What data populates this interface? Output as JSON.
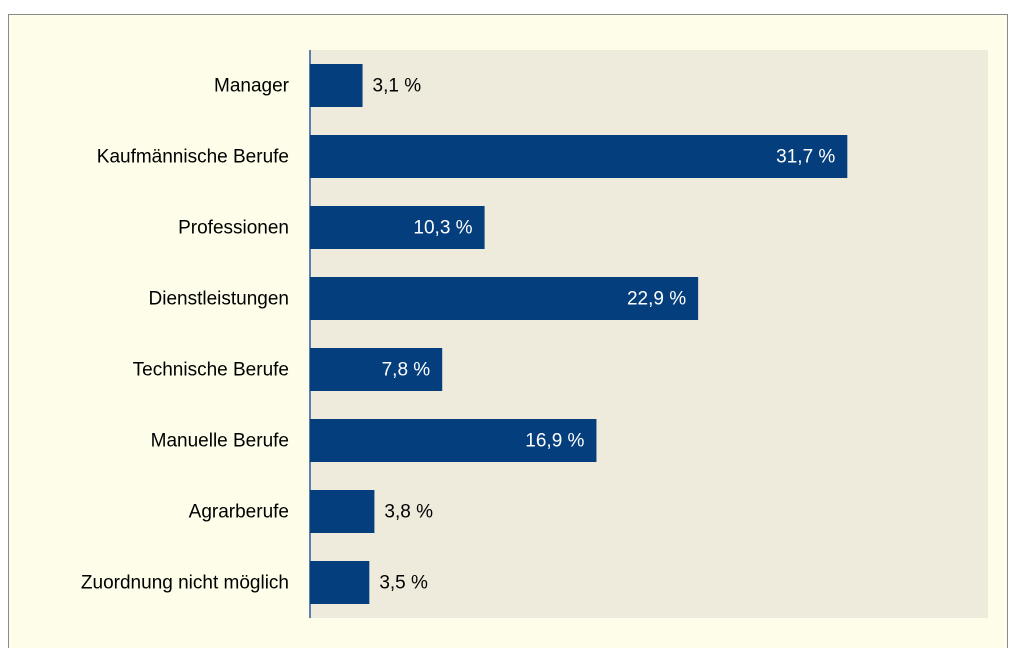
{
  "chart_data": {
    "type": "barh",
    "categories": [
      "Manager",
      "Kaufmännische Berufe",
      "Professionen",
      "Dienstleistungen",
      "Technische Berufe",
      "Manuelle Berufe",
      "Agrarberufe",
      "Zuordnung nicht möglich"
    ],
    "values": [
      3.1,
      31.7,
      10.3,
      22.9,
      7.8,
      16.9,
      3.8,
      3.5
    ],
    "value_labels": [
      "3,1 %",
      "31,7 %",
      "10,3 %",
      "22,9 %",
      "7,8 %",
      "16,9 %",
      "3,8 %",
      "3,5 %"
    ],
    "color": "#053e7c",
    "xlim": [
      0,
      40
    ]
  }
}
